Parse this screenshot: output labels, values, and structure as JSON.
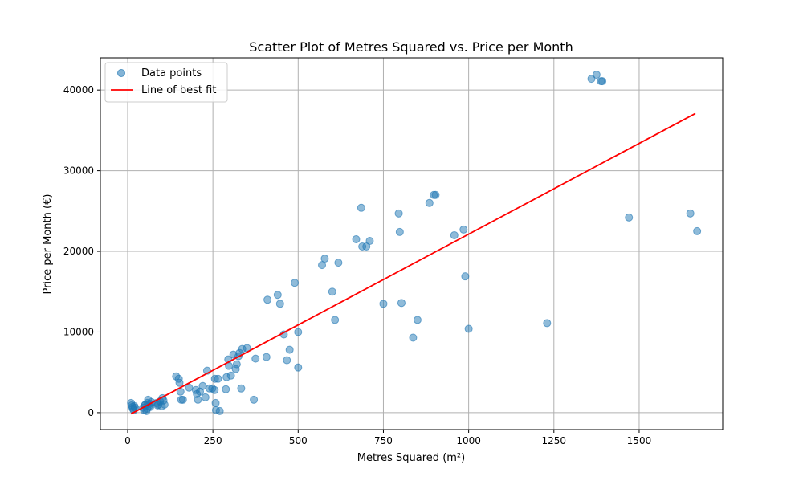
{
  "chart_data": {
    "type": "scatter",
    "title": "Scatter Plot of Metres Squared vs. Price per Month",
    "xlabel": "Metres Squared (m²)",
    "ylabel": "Price per Month (€)",
    "xlim": [
      -80,
      1745
    ],
    "ylim": [
      -2100,
      44000
    ],
    "xticks": [
      0,
      250,
      500,
      750,
      1000,
      1250,
      1500
    ],
    "yticks": [
      0,
      10000,
      20000,
      30000,
      40000
    ],
    "xtick_labels": [
      "0",
      "250",
      "500",
      "750",
      "1000",
      "1250",
      "1500"
    ],
    "ytick_labels": [
      "0",
      "10000",
      "20000",
      "30000",
      "40000"
    ],
    "grid": true,
    "legend": {
      "placement": "top-left",
      "entries": [
        "Data points",
        "Line of best fit"
      ]
    },
    "colors": {
      "points": "#1f77b4",
      "line": "#ff0000"
    },
    "series": [
      {
        "name": "Data points",
        "kind": "scatter",
        "points": [
          [
            10,
            1200
          ],
          [
            12,
            900
          ],
          [
            14,
            700
          ],
          [
            15,
            500
          ],
          [
            18,
            300
          ],
          [
            20,
            800
          ],
          [
            22,
            600
          ],
          [
            45,
            600
          ],
          [
            48,
            300
          ],
          [
            50,
            900
          ],
          [
            52,
            1000
          ],
          [
            55,
            200
          ],
          [
            57,
            500
          ],
          [
            58,
            1200
          ],
          [
            60,
            1600
          ],
          [
            62,
            800
          ],
          [
            64,
            1100
          ],
          [
            66,
            700
          ],
          [
            70,
            1300
          ],
          [
            85,
            1200
          ],
          [
            88,
            900
          ],
          [
            90,
            1000
          ],
          [
            95,
            1400
          ],
          [
            100,
            800
          ],
          [
            102,
            1800
          ],
          [
            105,
            1500
          ],
          [
            108,
            1000
          ],
          [
            142,
            4500
          ],
          [
            150,
            4200
          ],
          [
            152,
            3700
          ],
          [
            155,
            2600
          ],
          [
            157,
            1600
          ],
          [
            162,
            1600
          ],
          [
            180,
            3100
          ],
          [
            200,
            2800
          ],
          [
            203,
            2300
          ],
          [
            206,
            1600
          ],
          [
            212,
            2600
          ],
          [
            220,
            3300
          ],
          [
            228,
            1900
          ],
          [
            233,
            5200
          ],
          [
            240,
            3000
          ],
          [
            248,
            3000
          ],
          [
            255,
            2800
          ],
          [
            256,
            4200
          ],
          [
            258,
            1200
          ],
          [
            259,
            300
          ],
          [
            265,
            4200
          ],
          [
            270,
            200
          ],
          [
            288,
            2900
          ],
          [
            290,
            4400
          ],
          [
            295,
            6600
          ],
          [
            297,
            5800
          ],
          [
            303,
            4600
          ],
          [
            310,
            7200
          ],
          [
            317,
            5400
          ],
          [
            320,
            6000
          ],
          [
            325,
            7000
          ],
          [
            328,
            7400
          ],
          [
            333,
            3000
          ],
          [
            336,
            7900
          ],
          [
            350,
            8000
          ],
          [
            370,
            1600
          ],
          [
            375,
            6700
          ],
          [
            407,
            6900
          ],
          [
            410,
            14000
          ],
          [
            440,
            14600
          ],
          [
            447,
            13500
          ],
          [
            458,
            9700
          ],
          [
            467,
            6500
          ],
          [
            475,
            7800
          ],
          [
            490,
            16100
          ],
          [
            500,
            10000
          ],
          [
            500,
            5600
          ],
          [
            570,
            18300
          ],
          [
            578,
            19100
          ],
          [
            600,
            15000
          ],
          [
            608,
            11500
          ],
          [
            618,
            18600
          ],
          [
            670,
            21500
          ],
          [
            685,
            25400
          ],
          [
            688,
            20600
          ],
          [
            700,
            20600
          ],
          [
            710,
            21300
          ],
          [
            750,
            13500
          ],
          [
            795,
            24700
          ],
          [
            798,
            22400
          ],
          [
            803,
            13600
          ],
          [
            837,
            9300
          ],
          [
            850,
            11500
          ],
          [
            885,
            26000
          ],
          [
            898,
            27000
          ],
          [
            903,
            27000
          ],
          [
            958,
            22000
          ],
          [
            985,
            22700
          ],
          [
            990,
            16900
          ],
          [
            1000,
            10400
          ],
          [
            1230,
            11100
          ],
          [
            1360,
            41400
          ],
          [
            1375,
            41900
          ],
          [
            1388,
            41100
          ],
          [
            1392,
            41100
          ],
          [
            1470,
            24200
          ],
          [
            1650,
            24700
          ],
          [
            1670,
            22500
          ]
        ]
      },
      {
        "name": "Line of best fit",
        "kind": "line",
        "points": [
          [
            10,
            -150
          ],
          [
            1665,
            37100
          ]
        ]
      }
    ]
  }
}
